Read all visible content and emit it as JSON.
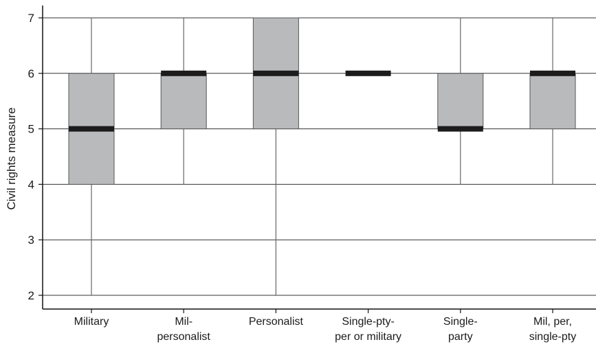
{
  "chart_data": {
    "type": "box",
    "ylabel": "Civil rights measure",
    "xlabel": "",
    "ylim": [
      1.8,
      7.2
    ],
    "yticks": [
      2,
      3,
      4,
      5,
      6,
      7
    ],
    "grid": "horizontal",
    "colors": {
      "box": "#b9babc",
      "median": "#1c1c1c",
      "whisker": "#666666",
      "grid": "#333333"
    },
    "categories": [
      [
        "Military"
      ],
      [
        "Mil-",
        "personalist"
      ],
      [
        "Personalist"
      ],
      [
        "Single-pty-",
        "per or military"
      ],
      [
        "Single-",
        "party"
      ],
      [
        "Mil, per,",
        "single-pty"
      ]
    ],
    "boxes": [
      {
        "whisker_low": 2,
        "q1": 4,
        "median": 5,
        "q3": 6,
        "whisker_high": 7
      },
      {
        "whisker_low": 4,
        "q1": 5,
        "median": 6,
        "q3": 6,
        "whisker_high": 7
      },
      {
        "whisker_low": 2,
        "q1": 5,
        "median": 6,
        "q3": 7,
        "whisker_high": 7
      },
      {
        "whisker_low": 6,
        "q1": 6,
        "median": 6,
        "q3": 6,
        "whisker_high": 6
      },
      {
        "whisker_low": 4,
        "q1": 5,
        "median": 5,
        "q3": 6,
        "whisker_high": 7
      },
      {
        "whisker_low": 4,
        "q1": 5,
        "median": 6,
        "q3": 6,
        "whisker_high": 7
      }
    ]
  }
}
